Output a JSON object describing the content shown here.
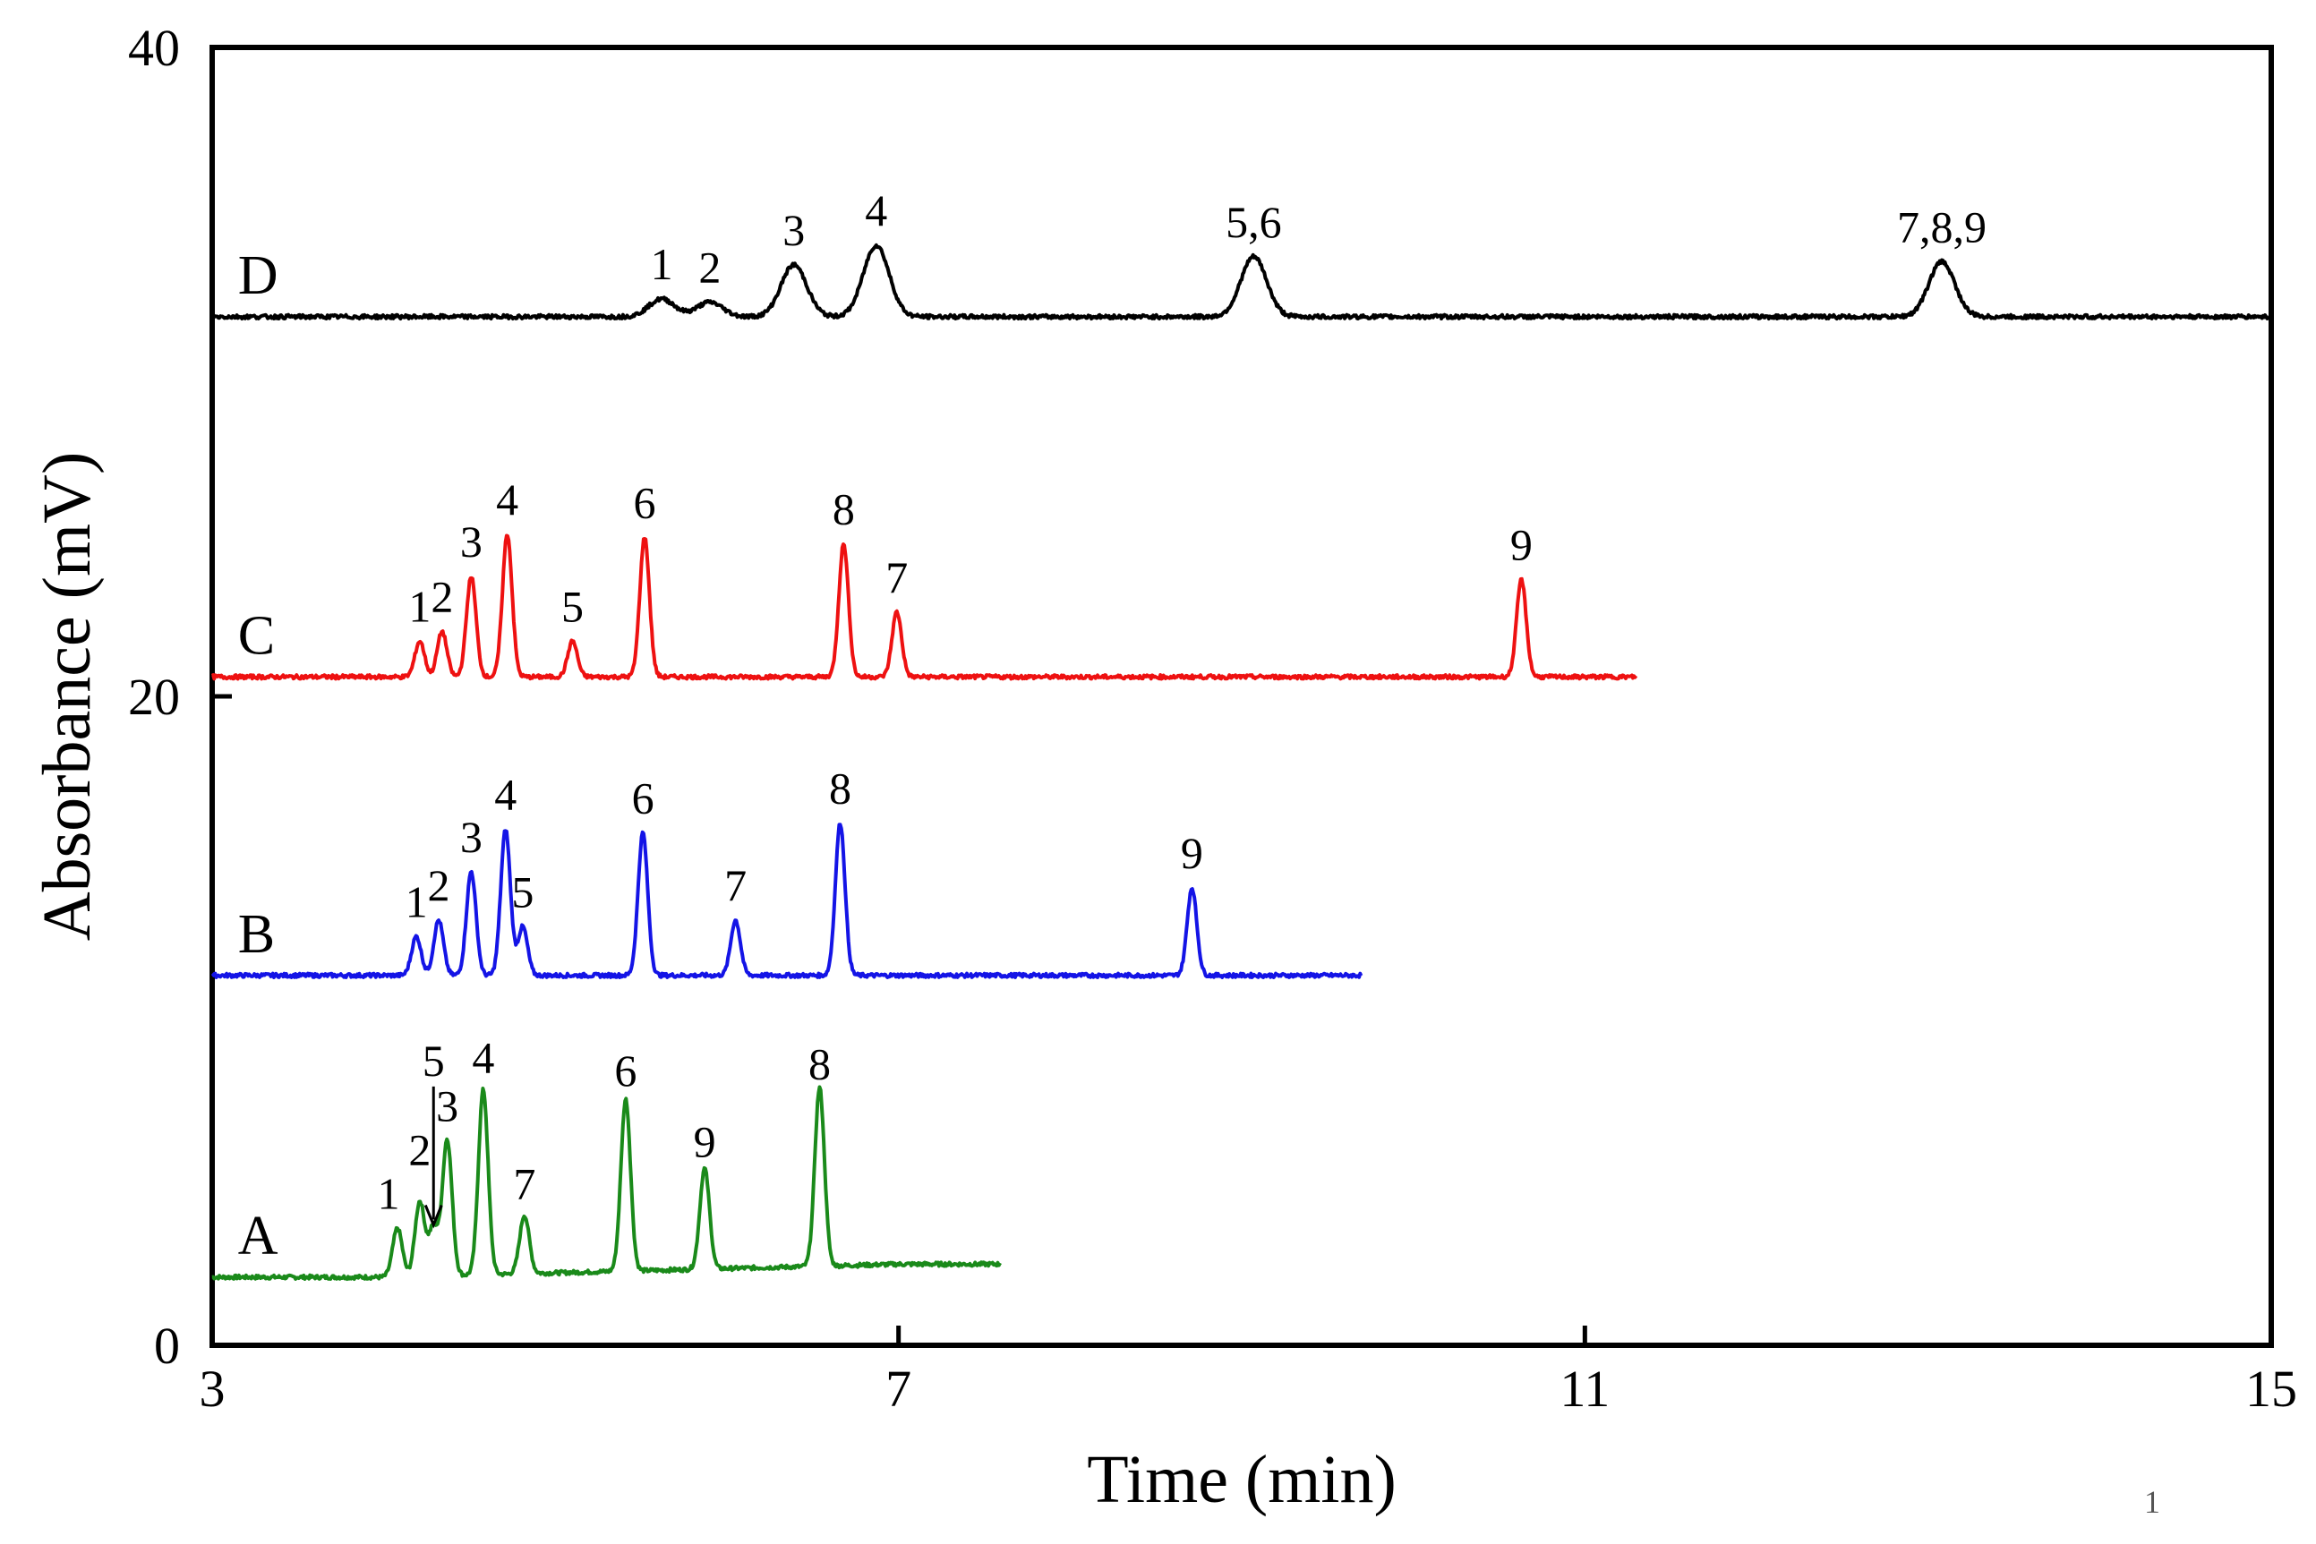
{
  "chart_data": {
    "type": "line",
    "title": "",
    "xlabel": "Time (min)",
    "ylabel": "Absorbance (mV)",
    "xlim": [
      3,
      15
    ],
    "ylim": [
      0,
      40
    ],
    "xticks": [
      3,
      7,
      11,
      15
    ],
    "yticks": [
      0,
      20,
      40
    ],
    "grid": false,
    "legend": "none",
    "page_number": "1",
    "series": [
      {
        "name": "A",
        "color": "#1a8a1a",
        "baseline": 2.1,
        "drift": 0.4,
        "end": 7.6,
        "peaks": [
          {
            "label": "1",
            "t": 4.08,
            "h": 1.5
          },
          {
            "label": "2",
            "t": 4.21,
            "h": 2.3
          },
          {
            "label": "5",
            "t": 4.29,
            "h": 1.5
          },
          {
            "label": "3",
            "t": 4.37,
            "h": 4.2
          },
          {
            "label": "4",
            "t": 4.58,
            "h": 5.7
          },
          {
            "label": "7",
            "t": 4.82,
            "h": 1.8
          },
          {
            "label": "6",
            "t": 5.41,
            "h": 5.3
          },
          {
            "label": "9",
            "t": 5.87,
            "h": 3.1
          },
          {
            "label": "8",
            "t": 6.54,
            "h": 5.5
          }
        ]
      },
      {
        "name": "B",
        "color": "#1414e6",
        "baseline": 11.4,
        "drift": 0,
        "end": 9.7,
        "peaks": [
          {
            "label": "1",
            "t": 4.19,
            "h": 1.2
          },
          {
            "label": "2",
            "t": 4.32,
            "h": 1.7
          },
          {
            "label": "3",
            "t": 4.51,
            "h": 3.2
          },
          {
            "label": "4",
            "t": 4.71,
            "h": 4.5
          },
          {
            "label": "5",
            "t": 4.81,
            "h": 1.5
          },
          {
            "label": "6",
            "t": 5.51,
            "h": 4.4
          },
          {
            "label": "7",
            "t": 6.05,
            "h": 1.7
          },
          {
            "label": "8",
            "t": 6.66,
            "h": 4.7
          },
          {
            "label": "9",
            "t": 8.71,
            "h": 2.7
          }
        ]
      },
      {
        "name": "C",
        "color": "#ee1111",
        "baseline": 20.6,
        "drift": 0,
        "end": 11.3,
        "peaks": [
          {
            "label": "1",
            "t": 4.21,
            "h": 1.1
          },
          {
            "label": "2",
            "t": 4.34,
            "h": 1.4
          },
          {
            "label": "3",
            "t": 4.51,
            "h": 3.1
          },
          {
            "label": "4",
            "t": 4.72,
            "h": 4.4
          },
          {
            "label": "5",
            "t": 5.1,
            "h": 1.1
          },
          {
            "label": "6",
            "t": 5.52,
            "h": 4.3
          },
          {
            "label": "8",
            "t": 6.68,
            "h": 4.1
          },
          {
            "label": "7",
            "t": 6.99,
            "h": 2.0
          },
          {
            "label": "9",
            "t": 10.63,
            "h": 3.0
          }
        ]
      },
      {
        "name": "D",
        "color": "#000000",
        "baseline": 31.7,
        "drift": 0,
        "end": 15.0,
        "peaks": [
          {
            "label": "1",
            "t": 5.62,
            "h": 0.55
          },
          {
            "label": "2",
            "t": 5.9,
            "h": 0.45
          },
          {
            "label": "3",
            "t": 6.39,
            "h": 1.6
          },
          {
            "label": "4",
            "t": 6.87,
            "h": 2.2
          },
          {
            "label": "5,6",
            "t": 9.07,
            "h": 1.85
          },
          {
            "label": "7,8,9",
            "t": 13.08,
            "h": 1.7
          }
        ]
      }
    ]
  }
}
